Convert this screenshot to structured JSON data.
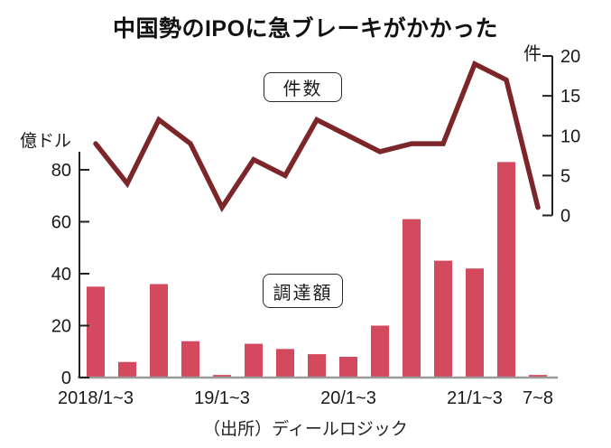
{
  "title": "中国勢のIPOに急ブレーキがかかった",
  "source": "（出所）ディールロジック",
  "legend": {
    "line_label": "件数",
    "bar_label": "調達額"
  },
  "axes_units": {
    "left": "億ドル",
    "right": "件"
  },
  "colors": {
    "bar": "#d4495e",
    "line": "#7c262a",
    "axis": "#222222",
    "baseline": "#999999",
    "text": "#1a1a1a"
  },
  "chart_data": {
    "type": "bar+line",
    "title": "中国勢のIPOに急ブレーキがかかった",
    "n_periods": 15,
    "x_tick_labels": [
      "2018/1~3",
      "",
      "",
      "",
      "19/1~3",
      "",
      "",
      "",
      "20/1~3",
      "",
      "",
      "",
      "21/1~3",
      "",
      "7~8"
    ],
    "series": [
      {
        "name": "調達額",
        "type": "bar",
        "axis": "left",
        "unit": "億ドル",
        "values": [
          35,
          6,
          36,
          14,
          1,
          13,
          11,
          9,
          8,
          20,
          61,
          45,
          42,
          83,
          1
        ]
      },
      {
        "name": "件数",
        "type": "line",
        "axis": "right",
        "unit": "件",
        "values": [
          9,
          4,
          12,
          9,
          1,
          7,
          5,
          12,
          10,
          8,
          9,
          9,
          19,
          17,
          1
        ]
      }
    ],
    "left_axis": {
      "label": "億ドル",
      "ticks": [
        0,
        20,
        40,
        60,
        80
      ],
      "range": [
        0,
        87
      ]
    },
    "right_axis": {
      "label": "件",
      "ticks": [
        0,
        5,
        10,
        15,
        20
      ],
      "range": [
        0,
        20
      ]
    },
    "grid": false,
    "legend_position": "inline-boxes",
    "source": "（出所）ディールロジック"
  }
}
